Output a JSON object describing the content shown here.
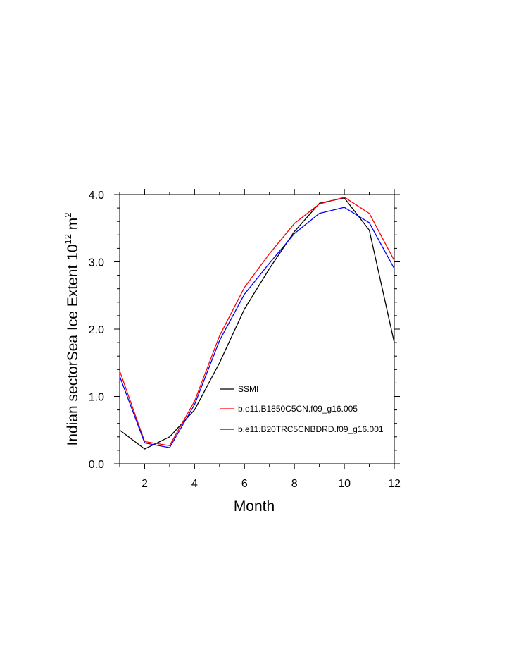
{
  "chart_data": {
    "type": "line",
    "title": "",
    "xlabel": "Month",
    "ylabel": "Indian sectorSea Ice Extent 10",
    "ylabel_exponent": "12",
    "ylabel_unit": " m",
    "ylabel_unit_exponent": "2",
    "xlim": [
      1,
      12
    ],
    "ylim": [
      0,
      4
    ],
    "x_ticks": [
      2,
      4,
      6,
      8,
      10,
      12
    ],
    "x_tick_labels": [
      "2",
      "4",
      "6",
      "8",
      "10",
      "12"
    ],
    "y_ticks": [
      0,
      1,
      2,
      3,
      4
    ],
    "y_tick_labels": [
      "0.0",
      "1.0",
      "2.0",
      "3.0",
      "4.0"
    ],
    "grid": false,
    "legend_position": "bottom-right",
    "x": [
      1,
      2,
      3,
      4,
      5,
      6,
      7,
      8,
      9,
      10,
      11,
      12
    ],
    "series": [
      {
        "name": "SSMI",
        "color": "#000000",
        "values": [
          0.5,
          0.22,
          0.4,
          0.8,
          1.5,
          2.3,
          2.9,
          3.45,
          3.87,
          3.95,
          3.47,
          1.8
        ]
      },
      {
        "name": "b.e11.B1850C5CN.f09_g16.005",
        "color": "#ff0000",
        "values": [
          1.38,
          0.33,
          0.27,
          0.93,
          1.9,
          2.62,
          3.12,
          3.57,
          3.86,
          3.96,
          3.72,
          3.02
        ]
      },
      {
        "name": "b.e11.B20TRC5CNBDRD.f09_g16.001",
        "color": "#0000ff",
        "values": [
          1.3,
          0.31,
          0.24,
          0.88,
          1.83,
          2.52,
          2.98,
          3.42,
          3.72,
          3.81,
          3.58,
          2.9
        ]
      }
    ]
  }
}
